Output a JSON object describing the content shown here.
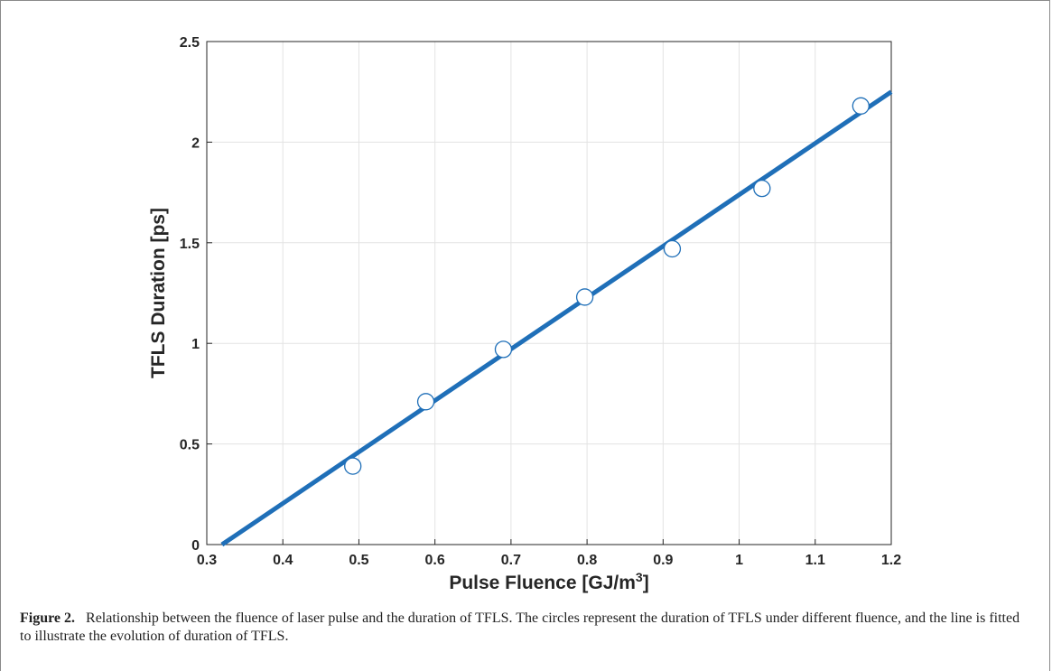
{
  "chart_data": {
    "type": "scatter",
    "xlabel": "Pulse Fluence [GJ/m",
    "xlabel_sup": "3",
    "xlabel_tail": "]",
    "ylabel": "TFLS Duration [ps]",
    "xlim": [
      0.3,
      1.2
    ],
    "ylim": [
      0,
      2.5
    ],
    "x_ticks": [
      "0.3",
      "0.4",
      "0.5",
      "0.6",
      "0.7",
      "0.8",
      "0.9",
      "1",
      "1.1",
      "1.2"
    ],
    "y_ticks": [
      "0",
      "0.5",
      "1",
      "1.5",
      "2",
      "2.5"
    ],
    "grid": true,
    "series": [
      {
        "type": "scatter",
        "marker": "circle",
        "x": [
          0.492,
          0.588,
          0.69,
          0.797,
          0.912,
          1.03,
          1.16
        ],
        "y": [
          0.39,
          0.71,
          0.97,
          1.23,
          1.47,
          1.77,
          2.18
        ]
      },
      {
        "type": "line",
        "x": [
          0.32,
          1.2
        ],
        "y": [
          0.0,
          2.25
        ]
      }
    ],
    "colors": {
      "line": "#1f6fb8",
      "marker_edge": "#1f6fb8",
      "marker_fill": "#ffffff"
    }
  },
  "caption": {
    "label": "Figure 2.",
    "text": "Relationship between the fluence of laser pulse and the duration of TFLS. The circles represent the duration of TFLS under different fluence, and the line is fitted to illustrate the evolution of duration of TFLS."
  }
}
